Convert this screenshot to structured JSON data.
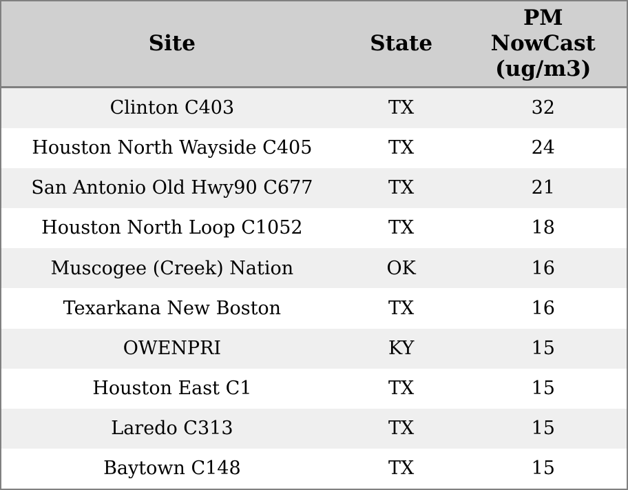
{
  "chart_data": {
    "type": "table",
    "columns": [
      "Site",
      "State",
      "PM NowCast (ug/m3)"
    ],
    "header_display": [
      "Site",
      "State",
      "PM\nNowCast\n(ug/m3)"
    ],
    "rows": [
      [
        "Clinton C403",
        "TX",
        32
      ],
      [
        "Houston North Wayside C405",
        "TX",
        24
      ],
      [
        "San Antonio Old Hwy90 C677",
        "TX",
        21
      ],
      [
        "Houston North Loop C1052",
        "TX",
        18
      ],
      [
        "Muscogee (Creek) Nation",
        "OK",
        16
      ],
      [
        "Texarkana New Boston",
        "TX",
        16
      ],
      [
        "OWENPRI",
        "KY",
        15
      ],
      [
        "Houston East C1",
        "TX",
        15
      ],
      [
        "Laredo C313",
        "TX",
        15
      ],
      [
        "Baytown C148",
        "TX",
        15
      ]
    ],
    "layout": {
      "striped": true,
      "grid": "outer-border-only",
      "header_rule": "thick"
    }
  },
  "colors": {
    "header_bg": "#d0d0d0",
    "row_stripe_bg": "#efefef",
    "row_bg": "#ffffff",
    "border": "#808080",
    "text": "#000000"
  }
}
